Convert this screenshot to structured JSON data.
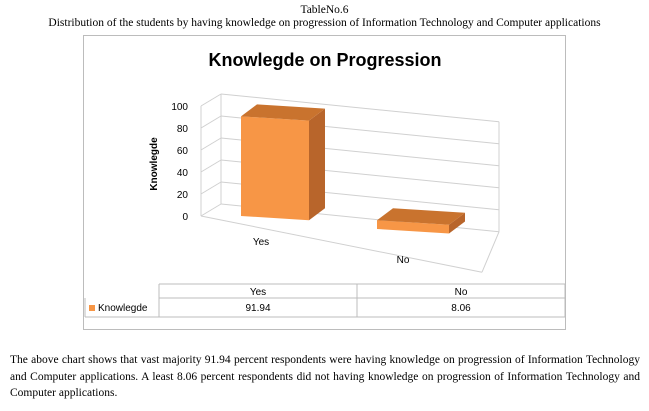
{
  "table_caption": "TableNo.6",
  "table_subcaption": "Distribution of the students by having knowledge on progression of Information Technology and Computer applications",
  "colors": {
    "bar_front": "#f79646",
    "bar_side": "#b8652b",
    "bar_top": "#c9732e",
    "grid": "#d0d0d0",
    "frame": "#bcbcbc"
  },
  "chart_data": {
    "type": "bar",
    "title": "Knowlegde on Progression",
    "ylabel": "Knowlegde",
    "xlabel": "",
    "categories": [
      "Yes",
      "No"
    ],
    "series": [
      {
        "name": "Knowlegde",
        "values": [
          91.94,
          8.06
        ]
      }
    ],
    "ylim": [
      0,
      100
    ],
    "yticks": [
      0,
      20,
      40,
      60,
      80,
      100
    ],
    "grid": true,
    "legend": "data-table-below",
    "data_table": {
      "headers": [
        "Yes",
        "No"
      ],
      "row_label": "Knowlegde",
      "cells": [
        "91.94",
        "8.06"
      ]
    }
  },
  "paragraph": "The above chart shows that vast majority 91.94 percent respondents were having knowledge on progression of Information Technology and Computer applications. A least 8.06 percent respondents did not having knowledge on progression of Information Technology and Computer applications."
}
